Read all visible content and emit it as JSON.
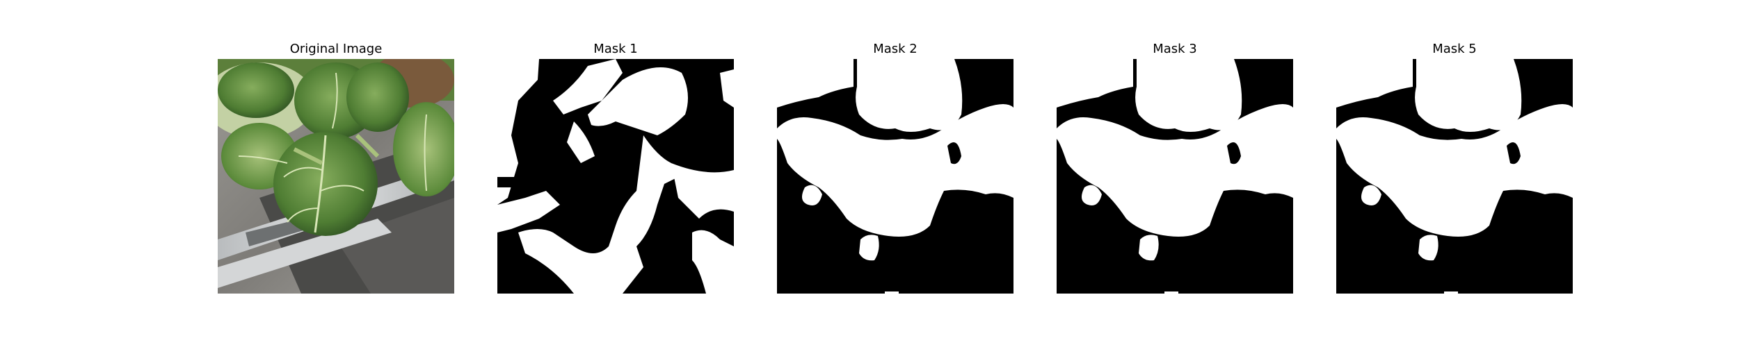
{
  "panels": [
    {
      "title": "Original Image",
      "kind": "photo",
      "subject": "plant-photo"
    },
    {
      "title": "Mask 1",
      "kind": "mask",
      "variant": "noisy"
    },
    {
      "title": "Mask 2",
      "kind": "mask",
      "variant": "smooth"
    },
    {
      "title": "Mask 3",
      "kind": "mask",
      "variant": "smooth"
    },
    {
      "title": "Mask 5",
      "kind": "mask",
      "variant": "smooth"
    }
  ],
  "colors": {
    "background": "#ffffff",
    "mask_foreground": "#ffffff",
    "mask_background": "#000000",
    "leaf_dark": "#3f6b2c",
    "leaf_light": "#7fa65a",
    "gravel": "#8c8c88",
    "rail": "#c9ccce"
  }
}
